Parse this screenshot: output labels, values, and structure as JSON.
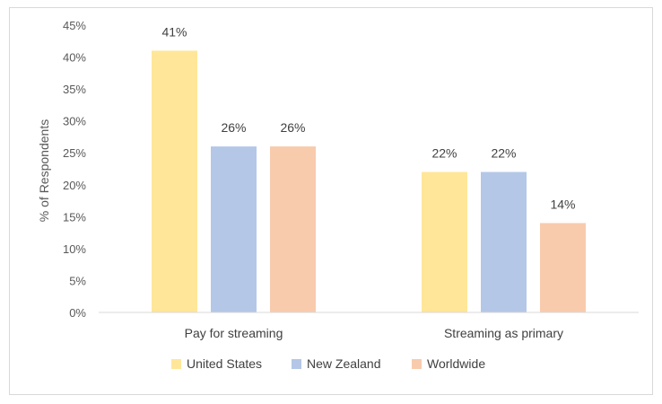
{
  "chart_data": {
    "type": "bar",
    "categories": [
      "Pay for streaming",
      "Streaming as primary"
    ],
    "series": [
      {
        "name": "United States",
        "values": [
          41,
          22
        ],
        "color": "#FFE699"
      },
      {
        "name": "New Zealand",
        "values": [
          26,
          22
        ],
        "color": "#B4C7E7"
      },
      {
        "name": "Worldwide",
        "values": [
          26,
          14
        ],
        "color": "#F8CBAD"
      }
    ],
    "data_labels": [
      [
        "41%",
        "22%"
      ],
      [
        "26%",
        "22%"
      ],
      [
        "26%",
        "14%"
      ]
    ],
    "ylabel": "% of Respondents",
    "ylim": [
      0,
      45
    ],
    "yticks": [
      0,
      5,
      10,
      15,
      20,
      25,
      30,
      35,
      40,
      45
    ],
    "ytick_labels": [
      "0%",
      "5%",
      "10%",
      "15%",
      "20%",
      "25%",
      "30%",
      "35%",
      "40%",
      "45%"
    ],
    "grid": false,
    "legend": "bottom"
  }
}
